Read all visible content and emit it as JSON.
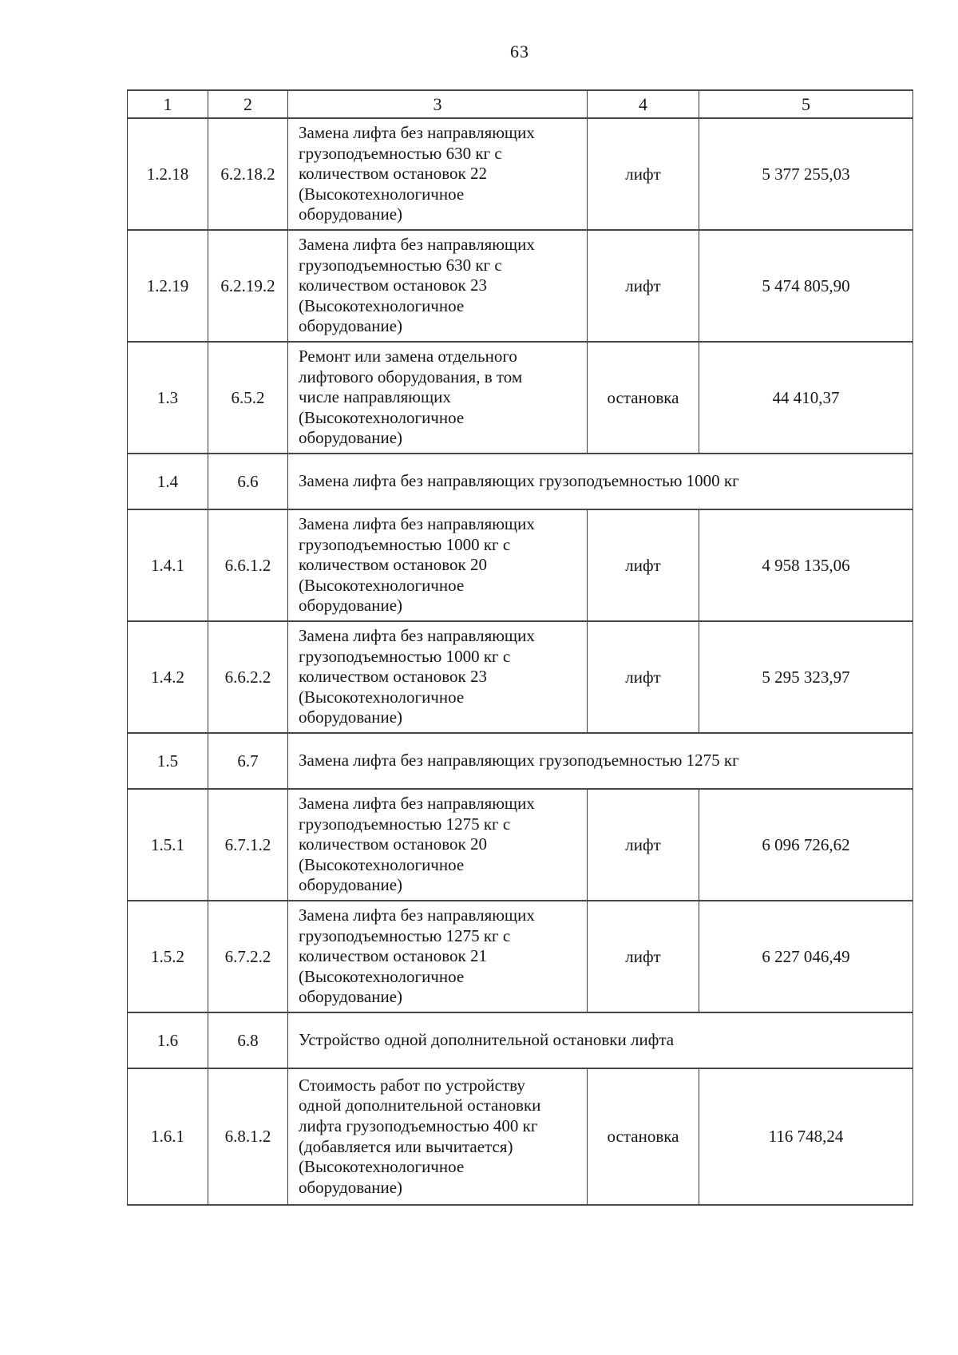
{
  "page_number": "63",
  "table": {
    "headers": [
      "1",
      "2",
      "3",
      "4",
      "5"
    ],
    "rows": [
      {
        "num": "1.2.18",
        "code": "6.2.18.2",
        "desc": "Замена лифта без направляющих\nгрузоподъемностью 630 кг с\nколичеством остановок 22\n(Высокотехнологичное\nоборудование)",
        "unit": "лифт",
        "price": "5 377 255,03"
      },
      {
        "num": "1.2.19",
        "code": "6.2.19.2",
        "desc": "Замена лифта без направляющих\nгрузоподъемностью 630 кг с\nколичеством остановок 23\n(Высокотехнологичное\nоборудование)",
        "unit": "лифт",
        "price": "5 474 805,90"
      },
      {
        "num": "1.3",
        "code": "6.5.2",
        "desc": "Ремонт или замена отдельного\nлифтового оборудования, в том\nчисле направляющих\n(Высокотехнологичное\nоборудование)",
        "unit": "остановка",
        "price": "44 410,37"
      },
      {
        "num": "1.4",
        "code": "6.6",
        "desc": "Замена лифта без направляющих грузоподъемностью 1000 кг"
      },
      {
        "num": "1.4.1",
        "code": "6.6.1.2",
        "desc": "Замена лифта без направляющих\nгрузоподъемностью 1000 кг с\nколичеством остановок 20\n(Высокотехнологичное\nоборудование)",
        "unit": "лифт",
        "price": "4 958 135,06"
      },
      {
        "num": "1.4.2",
        "code": "6.6.2.2",
        "desc": "Замена лифта без направляющих\nгрузоподъемностью 1000 кг с\nколичеством остановок 23\n(Высокотехнологичное\nоборудование)",
        "unit": "лифт",
        "price": "5 295 323,97"
      },
      {
        "num": "1.5",
        "code": "6.7",
        "desc": "Замена лифта без направляющих грузоподъемностью 1275 кг"
      },
      {
        "num": "1.5.1",
        "code": "6.7.1.2",
        "desc": "Замена лифта без направляющих\nгрузоподъемностью 1275 кг с\nколичеством остановок 20\n(Высокотехнологичное\nоборудование)",
        "unit": "лифт",
        "price": "6 096 726,62"
      },
      {
        "num": "1.5.2",
        "code": "6.7.2.2",
        "desc": "Замена лифта без направляющих\nгрузоподъемностью 1275 кг с\nколичеством остановок 21\n(Высокотехнологичное\nоборудование)",
        "unit": "лифт",
        "price": "6 227 046,49"
      },
      {
        "num": "1.6",
        "code": "6.8",
        "desc": "Устройство одной дополнительной остановки лифта"
      },
      {
        "num": "1.6.1",
        "code": "6.8.1.2",
        "desc": "Стоимость работ по устройству\nодной дополнительной остановки\nлифта грузоподъемностью 400 кг\n(добавляется или вычитается)\n(Высокотехнологичное\nоборудование)",
        "unit": "остановка",
        "price": "116 748,24"
      }
    ]
  }
}
